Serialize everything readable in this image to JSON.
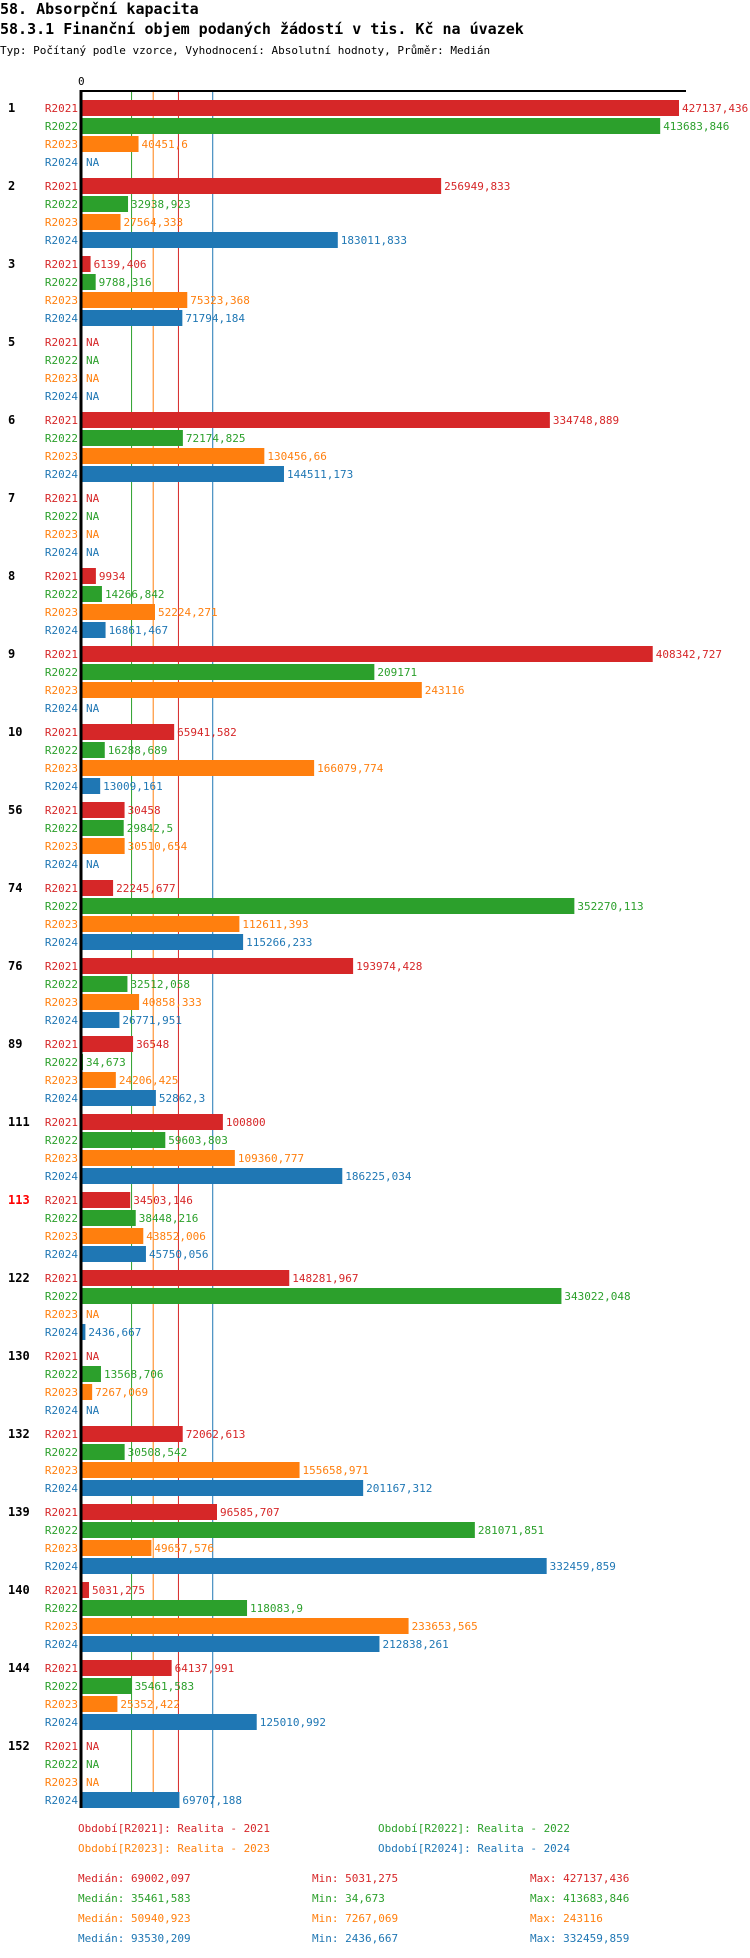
{
  "header": {
    "section_title": "58. Absorpční kapacita",
    "chart_title": "58.3.1 Finanční objem podaných žádostí v tis. Kč na úvazek",
    "subtitle": "Typ: Počítaný podle vzorce, Vyhodnocení: Absolutní hodnoty, Průměr: Medián"
  },
  "chart_data": {
    "type": "bar",
    "orientation": "horizontal",
    "title": "58.3.1 Finanční objem podaných žádostí v tis. Kč na úvazek",
    "xlabel": "",
    "ylabel": "",
    "x_tick_labels": [
      "0"
    ],
    "xlim": [
      0,
      430000
    ],
    "grid": false,
    "legend_position": "bottom",
    "series_names": [
      "R2021",
      "R2022",
      "R2023",
      "R2024"
    ],
    "series_colors": [
      "#d62728",
      "#2ca02c",
      "#ff7f0e",
      "#1f77b4"
    ],
    "groups": [
      {
        "label": "1",
        "highlight": false,
        "values": [
          427137.436,
          413683.846,
          40451.6,
          null
        ],
        "labels": [
          "427137,436",
          "413683,846",
          "40451,6",
          "NA"
        ]
      },
      {
        "label": "2",
        "highlight": false,
        "values": [
          256949.833,
          32938.923,
          27564.333,
          183011.833
        ],
        "labels": [
          "256949,833",
          "32938,923",
          "27564,333",
          "183011,833"
        ]
      },
      {
        "label": "3",
        "highlight": false,
        "values": [
          6139.406,
          9788.316,
          75323.368,
          71794.184
        ],
        "labels": [
          "6139,406",
          "9788,316",
          "75323,368",
          "71794,184"
        ]
      },
      {
        "label": "5",
        "highlight": false,
        "values": [
          null,
          null,
          null,
          null
        ],
        "labels": [
          "NA",
          "NA",
          "NA",
          "NA"
        ]
      },
      {
        "label": "6",
        "highlight": false,
        "values": [
          334748.889,
          72174.825,
          130456.66,
          144511.173
        ],
        "labels": [
          "334748,889",
          "72174,825",
          "130456,66",
          "144511,173"
        ]
      },
      {
        "label": "7",
        "highlight": false,
        "values": [
          null,
          null,
          null,
          null
        ],
        "labels": [
          "NA",
          "NA",
          "NA",
          "NA"
        ]
      },
      {
        "label": "8",
        "highlight": false,
        "values": [
          9934,
          14266.842,
          52224.271,
          16861.467
        ],
        "labels": [
          "9934",
          "14266,842",
          "52224,271",
          "16861,467"
        ]
      },
      {
        "label": "9",
        "highlight": false,
        "values": [
          408342.727,
          209171,
          243116,
          null
        ],
        "labels": [
          "408342,727",
          "209171",
          "243116",
          "NA"
        ]
      },
      {
        "label": "10",
        "highlight": false,
        "values": [
          65941.582,
          16288.689,
          166079.774,
          13009.161
        ],
        "labels": [
          "65941,582",
          "16288,689",
          "166079,774",
          "13009,161"
        ]
      },
      {
        "label": "56",
        "highlight": false,
        "values": [
          30458,
          29842.5,
          30510.654,
          null
        ],
        "labels": [
          "30458",
          "29842,5",
          "30510,654",
          "NA"
        ]
      },
      {
        "label": "74",
        "highlight": false,
        "values": [
          22245.677,
          352270.113,
          112611.393,
          115266.233
        ],
        "labels": [
          "22245,677",
          "352270,113",
          "112611,393",
          "115266,233"
        ]
      },
      {
        "label": "76",
        "highlight": false,
        "values": [
          193974.428,
          32512.058,
          40858.333,
          26771.951
        ],
        "labels": [
          "193974,428",
          "32512,058",
          "40858,333",
          "26771,951"
        ]
      },
      {
        "label": "89",
        "highlight": false,
        "values": [
          36548,
          34.673,
          24206.425,
          52862.3
        ],
        "labels": [
          "36548",
          "34,673",
          "24206,425",
          "52862,3"
        ]
      },
      {
        "label": "111",
        "highlight": false,
        "values": [
          100800,
          59603.803,
          109360.777,
          186225.034
        ],
        "labels": [
          "100800",
          "59603,803",
          "109360,777",
          "186225,034"
        ]
      },
      {
        "label": "113",
        "highlight": true,
        "values": [
          34503.146,
          38448.216,
          43852.006,
          45750.056
        ],
        "labels": [
          "34503,146",
          "38448,216",
          "43852,006",
          "45750,056"
        ]
      },
      {
        "label": "122",
        "highlight": false,
        "values": [
          148281.967,
          343022.048,
          null,
          2436.667
        ],
        "labels": [
          "148281,967",
          "343022,048",
          "NA",
          "2436,667"
        ]
      },
      {
        "label": "130",
        "highlight": false,
        "values": [
          null,
          13568.706,
          7267.069,
          null
        ],
        "labels": [
          "NA",
          "13568,706",
          "7267,069",
          "NA"
        ]
      },
      {
        "label": "132",
        "highlight": false,
        "values": [
          72062.613,
          30508.542,
          155658.971,
          201167.312
        ],
        "labels": [
          "72062,613",
          "30508,542",
          "155658,971",
          "201167,312"
        ]
      },
      {
        "label": "139",
        "highlight": false,
        "values": [
          96585.707,
          281071.851,
          49657.576,
          332459.859
        ],
        "labels": [
          "96585,707",
          "281071,851",
          "49657,576",
          "332459,859"
        ]
      },
      {
        "label": "140",
        "highlight": false,
        "values": [
          5031.275,
          118083.9,
          233653.565,
          212838.261
        ],
        "labels": [
          "5031,275",
          "118083,9",
          "233653,565",
          "212838,261"
        ]
      },
      {
        "label": "144",
        "highlight": false,
        "values": [
          64137.991,
          35461.583,
          25352.422,
          125010.992
        ],
        "labels": [
          "64137,991",
          "35461,583",
          "25352,422",
          "125010,992"
        ]
      },
      {
        "label": "152",
        "highlight": false,
        "values": [
          null,
          null,
          null,
          69707.188
        ],
        "labels": [
          "NA",
          "NA",
          "NA",
          "69707,188"
        ]
      }
    ],
    "median_lines": [
      69002.097,
      35461.583,
      50940.923,
      93530.209
    ]
  },
  "legend": [
    {
      "text": "Období[R2021]: Realita - 2021",
      "color": "#d62728"
    },
    {
      "text": "Období[R2022]: Realita - 2022",
      "color": "#2ca02c"
    },
    {
      "text": "Období[R2023]: Realita - 2023",
      "color": "#ff7f0e"
    },
    {
      "text": "Období[R2024]: Realita - 2024",
      "color": "#1f77b4"
    }
  ],
  "stats": [
    {
      "median": "Medián: 69002,097",
      "min": "Min: 5031,275",
      "max": "Max: 427137,436",
      "color": "#d62728"
    },
    {
      "median": "Medián: 35461,583",
      "min": "Min: 34,673",
      "max": "Max: 413683,846",
      "color": "#2ca02c"
    },
    {
      "median": "Medián: 50940,923",
      "min": "Min: 7267,069",
      "max": "Max: 243116",
      "color": "#ff7f0e"
    },
    {
      "median": "Medián: 93530,209",
      "min": "Min: 2436,667",
      "max": "Max: 332459,859",
      "color": "#1f77b4"
    }
  ],
  "colors": {
    "highlight_group": "#ff0000",
    "axis": "#000000",
    "text": "#000000"
  }
}
